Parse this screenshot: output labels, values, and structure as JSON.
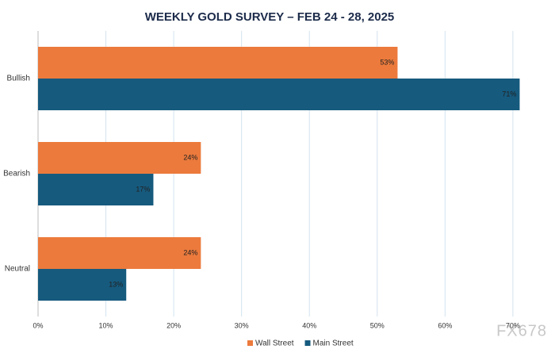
{
  "chart_data": {
    "type": "hbar",
    "title": "WEEKLY GOLD SURVEY – FEB 24 - 28, 2025",
    "categories": [
      "Bullish",
      "Bearish",
      "Neutral"
    ],
    "series": [
      {
        "name": "Wall Street",
        "color": "#ec7a3c",
        "values": [
          53,
          24,
          24
        ],
        "value_labels": [
          "53%",
          "24%",
          "24%"
        ]
      },
      {
        "name": "Main Street",
        "color": "#165a7e",
        "values": [
          71,
          17,
          13
        ],
        "value_labels": [
          "71%",
          "17%",
          "13%"
        ]
      }
    ],
    "xlim": [
      0,
      72
    ],
    "xticks": [
      {
        "value": 0,
        "label": "0%"
      },
      {
        "value": 10,
        "label": "10%"
      },
      {
        "value": 20,
        "label": "20%"
      },
      {
        "value": 30,
        "label": "30%"
      },
      {
        "value": 40,
        "label": "40%"
      },
      {
        "value": 50,
        "label": "50%"
      },
      {
        "value": 60,
        "label": "60%"
      },
      {
        "value": 70,
        "label": "70%"
      }
    ],
    "grid": true,
    "legend": "bottom",
    "watermark": "FX678"
  }
}
